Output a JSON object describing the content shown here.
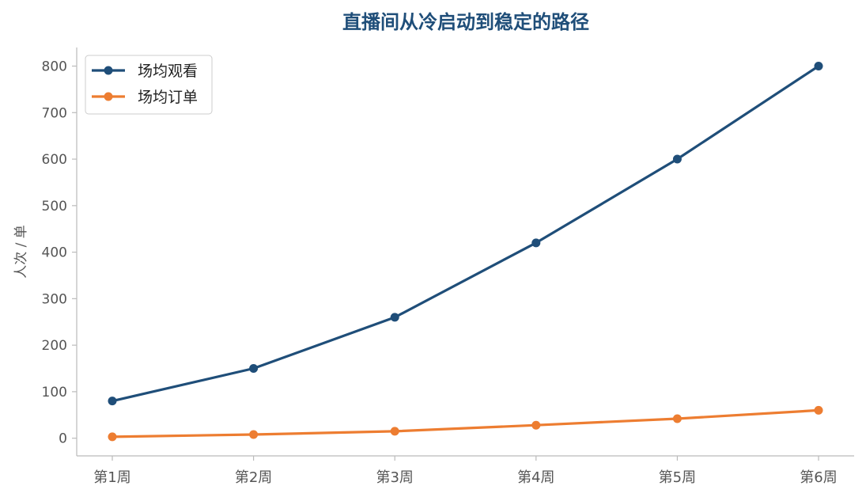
{
  "chart_data": {
    "type": "line",
    "title": "直播间从冷启动到稳定的路径",
    "ylabel": "人次 / 单",
    "xlabel": "",
    "categories": [
      "第1周",
      "第2周",
      "第3周",
      "第4周",
      "第5周",
      "第6周"
    ],
    "series": [
      {
        "name": "场均观看",
        "values": [
          80,
          150,
          260,
          420,
          600,
          800
        ],
        "color": "#1f4e79"
      },
      {
        "name": "场均订单",
        "values": [
          3,
          8,
          15,
          28,
          42,
          60
        ],
        "color": "#ed7d31"
      }
    ],
    "ylim": [
      -38,
      840
    ],
    "yticks": [
      0,
      100,
      200,
      300,
      400,
      500,
      600,
      700,
      800
    ],
    "grid": false,
    "legend_position": "top-left",
    "marker": "circle"
  }
}
